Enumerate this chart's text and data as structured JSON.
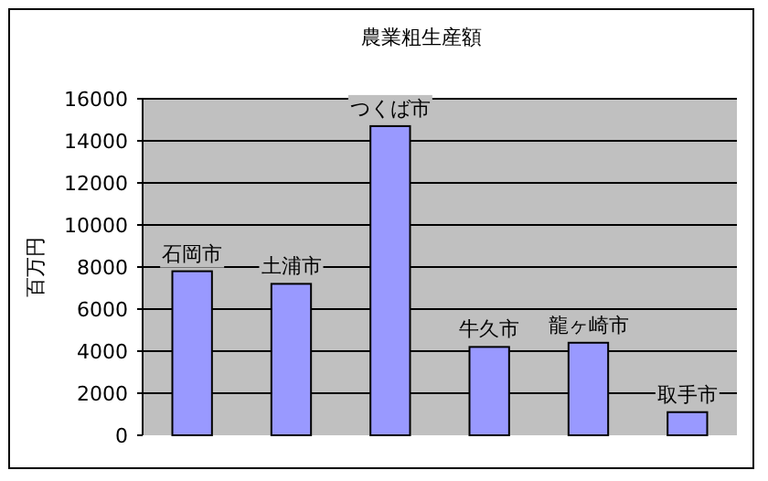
{
  "chart_data": {
    "type": "bar",
    "title": "農業粗生産額",
    "ylabel": "百万円",
    "categories": [
      "石岡市",
      "土浦市",
      "つくば市",
      "牛久市",
      "龍ヶ崎市",
      "取手市"
    ],
    "values": [
      7800,
      7200,
      14700,
      4200,
      4400,
      1100
    ],
    "color": "#9999ff",
    "ylim": [
      0,
      16000
    ],
    "yticks": [
      0,
      2000,
      4000,
      6000,
      8000,
      10000,
      12000,
      14000,
      16000
    ],
    "grid": "y"
  }
}
